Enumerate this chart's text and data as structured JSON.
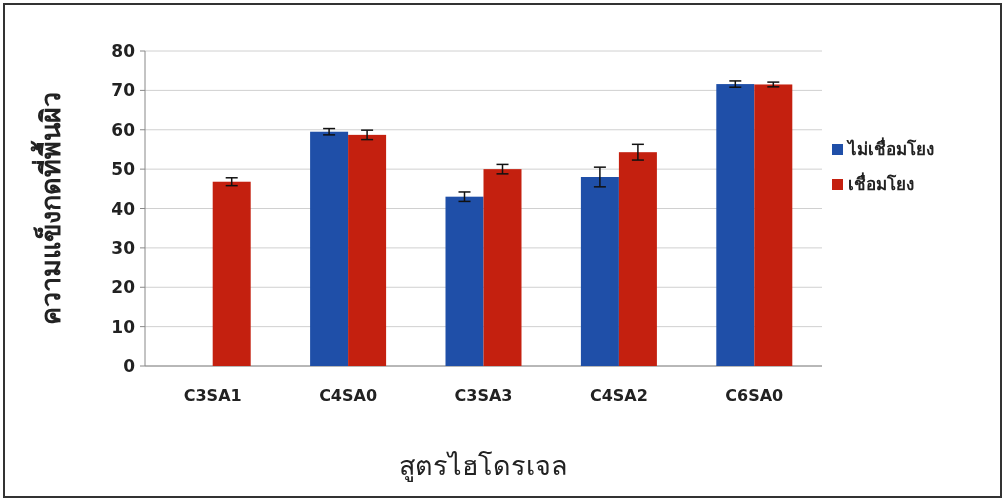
{
  "chart_data": {
    "type": "bar",
    "xlabel": "สูตรไฮโดรเจล",
    "ylabel": "ความแข็งกดที่พื้นผิว",
    "categories": [
      "C3SA1",
      "C4SA0",
      "C3SA3",
      "C4SA2",
      "C6SA0"
    ],
    "series": [
      {
        "name": "ไม่เชื่อมโยง",
        "color": "#1f4fa8",
        "values": [
          null,
          59.5,
          43,
          48,
          71.6
        ],
        "errors": [
          null,
          0.8,
          1.2,
          2.5,
          0.8
        ]
      },
      {
        "name": "เชื่อมโยง",
        "color": "#c4200f",
        "values": [
          46.8,
          58.7,
          50,
          54.3,
          71.5
        ],
        "errors": [
          1.0,
          1.2,
          1.2,
          2.0,
          0.6
        ]
      }
    ],
    "ylim": [
      0,
      80
    ],
    "yticks": [
      0,
      10,
      20,
      30,
      40,
      50,
      60,
      70,
      80
    ],
    "grid": "y",
    "legend": "right"
  }
}
